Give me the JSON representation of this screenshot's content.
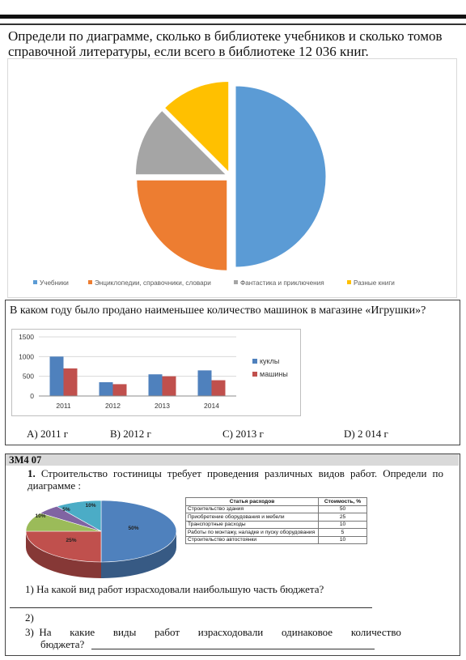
{
  "q1": {
    "text": "Определи по диаграмме, сколько в библиотеке учебников и сколько томов справочной литературы, если всего в библиотеке 12 036 книг.",
    "chart_data": {
      "type": "pie",
      "categories": [
        "Учебники",
        "Энциклопедии, справочники, словари",
        "Фантастика и приключения",
        "Разные книги"
      ],
      "values": [
        50,
        25,
        12.5,
        12.5
      ],
      "colors": [
        "#5b9bd5",
        "#ed7d31",
        "#a5a5a5",
        "#ffc000"
      ],
      "legend": "bottom"
    }
  },
  "q2": {
    "text": "В каком году было продано наименьшее количество машинок в магазине «Игрушки»?",
    "chart_data": {
      "type": "bar",
      "categories": [
        "2011",
        "2012",
        "2013",
        "2014"
      ],
      "series": [
        {
          "name": "куклы",
          "values": [
            1000,
            350,
            550,
            650
          ],
          "color": "#4f81bd"
        },
        {
          "name": "машины",
          "values": [
            700,
            300,
            500,
            400
          ],
          "color": "#c0504d"
        }
      ],
      "ylim": [
        0,
        1500
      ],
      "yticks": [
        "0",
        "500",
        "1000",
        "1500"
      ],
      "legend": "right",
      "grid": true
    },
    "answers": [
      "A) 2011 г",
      "B) 2012 г",
      "C) 2013 г",
      "D)  2 014 г"
    ]
  },
  "q3": {
    "header": "ЗМ4  07",
    "task_number": "1.",
    "task_text": "Строительство гостиницы требует проведения различных видов работ. Определи по диаграмме :",
    "chart_data": {
      "type": "pie",
      "values": [
        50,
        25,
        10,
        5,
        10
      ],
      "labels": [
        "50%",
        "25%",
        "10%",
        "5%",
        "10%"
      ],
      "colors": [
        "#4f81bd",
        "#c0504d",
        "#9bbb59",
        "#8064a2",
        "#4bacc6"
      ],
      "style": "3d"
    },
    "table": {
      "headers": [
        "Статья расходов",
        "Стоимость, %"
      ],
      "rows": [
        [
          "Строительство здания",
          "50"
        ],
        [
          "Приобретение оборудования и мебели",
          "25"
        ],
        [
          "Транспортные расходы",
          "10"
        ],
        [
          "Работы по монтажу, наладке и пуску оборудования",
          "5"
        ],
        [
          "Строительство автостоянки",
          "10"
        ]
      ]
    },
    "sub1": "1)  На какой вид работ израсходовали наибольшую часть бюджета?",
    "sub2": "2)",
    "sub3_a": "3)  На       какие       виды       работ       израсходовали       одинаковое       количество",
    "sub3_b": "бюджета?"
  }
}
